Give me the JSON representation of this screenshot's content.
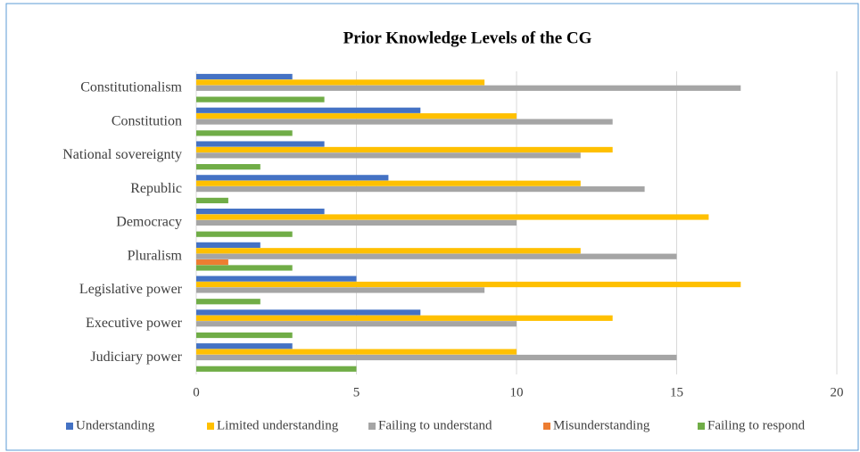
{
  "chart_data": {
    "type": "bar",
    "orientation": "horizontal",
    "title": "Prior Knowledge Levels of the CG",
    "categories": [
      "Constitutionalism",
      "Constitution",
      "National sovereignty",
      "Republic",
      "Democracy",
      "Pluralism",
      "Legislative power",
      "Executive power",
      "Judiciary power"
    ],
    "series": [
      {
        "name": "Understanding",
        "color": "#4472c4",
        "values": [
          3,
          7,
          4,
          6,
          4,
          2,
          5,
          7,
          3
        ]
      },
      {
        "name": "Limited understanding",
        "color": "#ffc000",
        "values": [
          9,
          10,
          13,
          12,
          16,
          12,
          17,
          13,
          10
        ]
      },
      {
        "name": "Failing to understand",
        "color": "#a5a5a5",
        "values": [
          17,
          13,
          12,
          14,
          10,
          15,
          9,
          10,
          15
        ]
      },
      {
        "name": "Misunderstanding",
        "color": "#ed7d31",
        "values": [
          0,
          0,
          0,
          0,
          0,
          1,
          0,
          0,
          0
        ]
      },
      {
        "name": "Failing to respond",
        "color": "#70ad47",
        "values": [
          4,
          3,
          2,
          1,
          3,
          3,
          2,
          3,
          5
        ]
      }
    ],
    "xlim": [
      0,
      20
    ],
    "xticks": [
      0,
      5,
      10,
      15,
      20
    ],
    "grid": true,
    "legend": "bottom"
  }
}
